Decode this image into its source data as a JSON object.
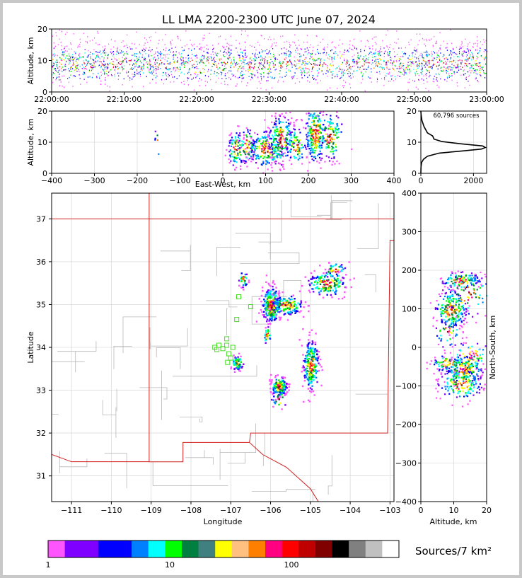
{
  "chart_data": [
    {
      "id": "time_height",
      "type": "scatter",
      "title": "LL LMA 2200-2300 UTC June 07, 2024",
      "ylabel": "Altitude, km",
      "xlim_minutes": [
        0,
        60
      ],
      "ylim": [
        0,
        20
      ],
      "x_ticks": [
        "22:00:00",
        "22:10:00",
        "22:20:00",
        "22:30:00",
        "22:40:00",
        "22:50:00",
        "23:00:00"
      ],
      "y_ticks": [
        0,
        10,
        20
      ]
    },
    {
      "id": "ew_height",
      "type": "scatter",
      "xlabel": "East-West, km",
      "ylabel": "Altitude, km",
      "xlim": [
        -400,
        400
      ],
      "ylim": [
        0,
        20
      ],
      "x_ticks": [
        -400,
        -300,
        -200,
        -100,
        0,
        100,
        200,
        300,
        400
      ],
      "y_ticks": [
        0,
        10,
        20
      ],
      "clusters": [
        {
          "x": 30,
          "y": 8,
          "sx": 10,
          "sy": 3,
          "n": 90
        },
        {
          "x": 55,
          "y": 9,
          "sx": 10,
          "sy": 3,
          "n": 70
        },
        {
          "x": 100,
          "y": 8,
          "sx": 20,
          "sy": 3,
          "n": 200
        },
        {
          "x": 135,
          "y": 11,
          "sx": 15,
          "sy": 4,
          "n": 220
        },
        {
          "x": 170,
          "y": 9,
          "sx": 12,
          "sy": 3,
          "n": 80
        },
        {
          "x": 215,
          "y": 13,
          "sx": 12,
          "sy": 5,
          "n": 260
        },
        {
          "x": 250,
          "y": 12,
          "sx": 15,
          "sy": 4,
          "n": 120
        },
        {
          "x": -155,
          "y": 10,
          "sx": 3,
          "sy": 3,
          "n": 6
        }
      ]
    },
    {
      "id": "height_histogram",
      "type": "line",
      "annotation": "60,796 sources",
      "xlim": [
        0,
        2500
      ],
      "ylim": [
        0,
        20
      ],
      "x_ticks": [
        0,
        2000
      ],
      "y_ticks": [
        0,
        10,
        20
      ],
      "profile": [
        {
          "alt": 0,
          "count": 0
        },
        {
          "alt": 2,
          "count": 5
        },
        {
          "alt": 3.5,
          "count": 30
        },
        {
          "alt": 4.5,
          "count": 100
        },
        {
          "alt": 5.5,
          "count": 250
        },
        {
          "alt": 6.5,
          "count": 700
        },
        {
          "alt": 7.2,
          "count": 1600
        },
        {
          "alt": 7.8,
          "count": 2300
        },
        {
          "alt": 8.3,
          "count": 2450
        },
        {
          "alt": 8.8,
          "count": 2350
        },
        {
          "alt": 9.5,
          "count": 1500
        },
        {
          "alt": 10.2,
          "count": 800
        },
        {
          "alt": 11,
          "count": 500
        },
        {
          "alt": 12,
          "count": 450
        },
        {
          "alt": 13,
          "count": 250
        },
        {
          "alt": 15,
          "count": 120
        },
        {
          "alt": 17,
          "count": 40
        },
        {
          "alt": 19,
          "count": 8
        },
        {
          "alt": 20,
          "count": 0
        }
      ]
    },
    {
      "id": "plan_view",
      "type": "scatter",
      "xlabel": "Longitude",
      "ylabel": "Latitude",
      "xlim": [
        -111.5,
        -102.9
      ],
      "ylim": [
        30.4,
        37.6
      ],
      "x_ticks": [
        -111,
        -110,
        -109,
        -108,
        -107,
        -106,
        -105,
        -104,
        -103
      ],
      "y_ticks": [
        31,
        32,
        33,
        34,
        35,
        36,
        37
      ],
      "clusters": [
        {
          "lon": -106.0,
          "lat": 35.0,
          "slon": 0.12,
          "slat": 0.22,
          "n": 260
        },
        {
          "lon": -105.6,
          "lat": 35.0,
          "slon": 0.2,
          "slat": 0.12,
          "n": 140
        },
        {
          "lon": -104.6,
          "lat": 35.5,
          "slon": 0.25,
          "slat": 0.15,
          "n": 160
        },
        {
          "lon": -104.4,
          "lat": 35.8,
          "slon": 0.15,
          "slat": 0.1,
          "n": 40
        },
        {
          "lon": -106.7,
          "lat": 35.6,
          "slon": 0.06,
          "slat": 0.1,
          "n": 30
        },
        {
          "lon": -105.0,
          "lat": 33.6,
          "slon": 0.1,
          "slat": 0.3,
          "n": 230
        },
        {
          "lon": -105.8,
          "lat": 33.1,
          "slon": 0.1,
          "slat": 0.12,
          "n": 150
        },
        {
          "lon": -106.85,
          "lat": 33.65,
          "slon": 0.08,
          "slat": 0.08,
          "n": 70
        },
        {
          "lon": -106.1,
          "lat": 34.3,
          "slon": 0.05,
          "slat": 0.1,
          "n": 25
        },
        {
          "lon": -105.8,
          "lat": 32.8,
          "slon": 0.1,
          "slat": 0.1,
          "n": 20
        }
      ],
      "stations": [
        {
          "lon": -107.3,
          "lat": 34.05
        },
        {
          "lon": -107.4,
          "lat": 34.0
        },
        {
          "lon": -107.35,
          "lat": 33.95
        },
        {
          "lon": -107.2,
          "lat": 33.97
        },
        {
          "lon": -107.1,
          "lat": 34.2
        },
        {
          "lon": -107.05,
          "lat": 33.85
        },
        {
          "lon": -107.1,
          "lat": 34.05
        },
        {
          "lon": -106.95,
          "lat": 34.0
        },
        {
          "lon": -107.08,
          "lat": 33.65
        },
        {
          "lon": -106.85,
          "lat": 34.65
        },
        {
          "lon": -106.8,
          "lat": 35.18
        },
        {
          "lon": -106.5,
          "lat": 34.95
        },
        {
          "lon": -107.0,
          "lat": 33.75
        }
      ]
    },
    {
      "id": "ns_height",
      "type": "scatter",
      "xlabel": "Altitude, km",
      "ylabel": "North-South, km",
      "xlim": [
        0,
        20
      ],
      "ylim": [
        -400,
        400
      ],
      "x_ticks": [
        0,
        10,
        20
      ],
      "y_ticks": [
        -400,
        -300,
        -200,
        -100,
        0,
        100,
        200,
        300,
        400
      ],
      "clusters": [
        {
          "alt": 9,
          "ns": 100,
          "salt": 2.5,
          "sns": 25,
          "n": 230
        },
        {
          "alt": 12,
          "ns": 175,
          "salt": 3,
          "sns": 12,
          "n": 120
        },
        {
          "alt": 14,
          "ns": 140,
          "salt": 4,
          "sns": 30,
          "n": 80
        },
        {
          "alt": 8,
          "ns": 40,
          "salt": 2,
          "sns": 20,
          "n": 40
        },
        {
          "alt": 8,
          "ns": -40,
          "salt": 2.5,
          "sns": 12,
          "n": 80
        },
        {
          "alt": 13,
          "ns": -55,
          "salt": 3,
          "sns": 20,
          "n": 200
        },
        {
          "alt": 12,
          "ns": -95,
          "salt": 3.5,
          "sns": 20,
          "n": 160
        },
        {
          "alt": 15,
          "ns": -20,
          "salt": 3,
          "sns": 20,
          "n": 60
        }
      ]
    },
    {
      "id": "colorbar",
      "type": "heatmap",
      "label": "Sources/7 km²",
      "scale": "log",
      "tick_labels": [
        "1",
        "10",
        "100"
      ],
      "colors": [
        "#ff55ff",
        "#8000ff",
        "#8000ff",
        "#0000ff",
        "#0000ff",
        "#0080ff",
        "#00ffff",
        "#00ff00",
        "#008040",
        "#408080",
        "#ffff00",
        "#ffc080",
        "#ff8000",
        "#ff0080",
        "#ff0000",
        "#c00000",
        "#800000",
        "#000000",
        "#808080",
        "#c0c0c0",
        "#ffffff"
      ]
    }
  ]
}
